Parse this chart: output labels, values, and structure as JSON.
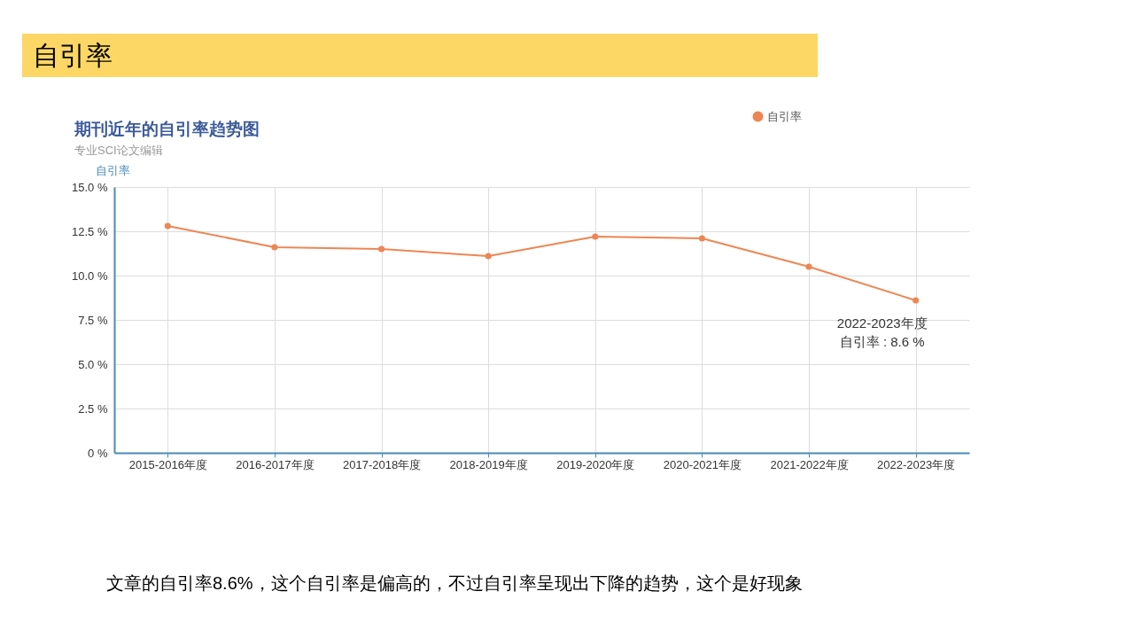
{
  "chart_data": {
    "type": "line",
    "title": "期刊近年的自引率趋势图",
    "subtitle": "专业SCI论文编辑",
    "ylabel": "自引率",
    "categories": [
      "2015-2016年度",
      "2016-2017年度",
      "2017-2018年度",
      "2018-2019年度",
      "2019-2020年度",
      "2020-2021年度",
      "2021-2022年度",
      "2022-2023年度"
    ],
    "series": [
      {
        "name": "自引率",
        "color": "#ee8654",
        "values": [
          12.8,
          11.6,
          11.5,
          11.1,
          12.2,
          12.1,
          10.5,
          8.6
        ]
      }
    ],
    "ylim": [
      0,
      15
    ],
    "yticks": [
      {
        "value": 0,
        "label": "0 %"
      },
      {
        "value": 2.5,
        "label": "2.5 %"
      },
      {
        "value": 5,
        "label": "5.0 %"
      },
      {
        "value": 7.5,
        "label": "7.5 %"
      },
      {
        "value": 10,
        "label": "10.0 %"
      },
      {
        "value": 12.5,
        "label": "12.5 %"
      },
      {
        "value": 15,
        "label": "15.0 %"
      }
    ],
    "grid": true,
    "legend": "top right",
    "marker": "circle",
    "line_style": "solid",
    "annotations": [
      "自引率",
      {
        "text": "2022-2023年度",
        "x": "2022-2023年度",
        "y": 8.6
      },
      {
        "text": "自引率 : 8.6 %",
        "x": "2022-2023年度",
        "y": 8.6
      },
      "文章的自引率8.6%，这个自引率是偏高的，不过自引率呈现出下降的趋势，这个是好现象"
    ]
  }
}
